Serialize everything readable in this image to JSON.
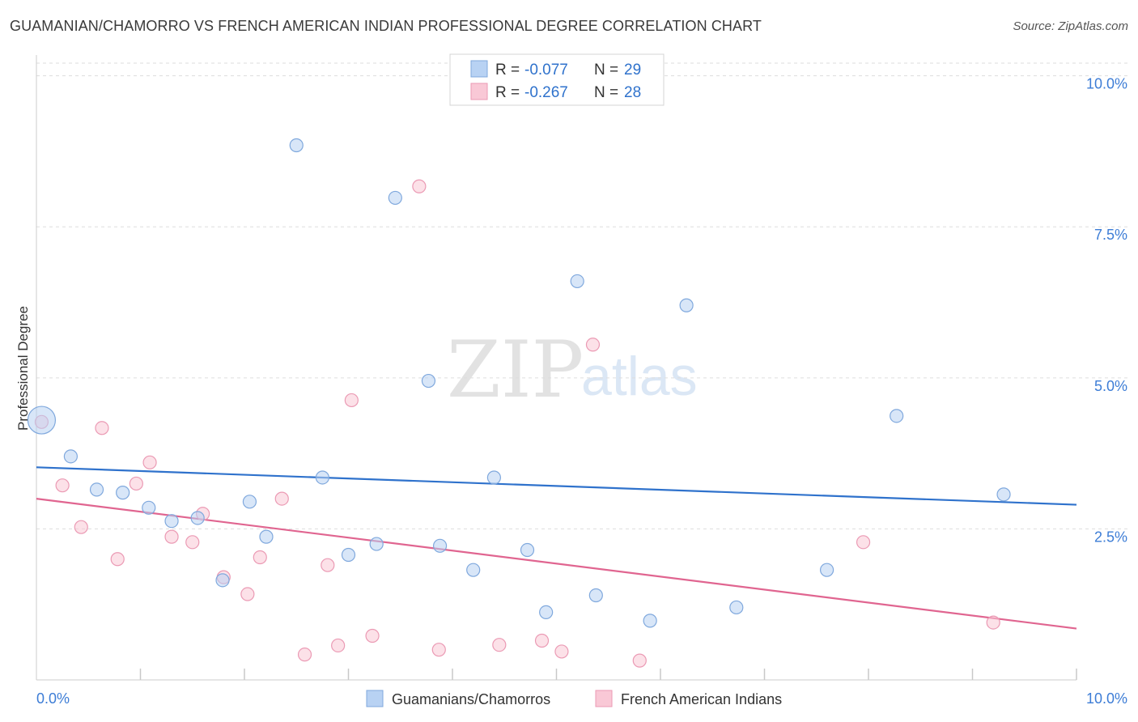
{
  "title": "GUAMANIAN/CHAMORRO VS FRENCH AMERICAN INDIAN PROFESSIONAL DEGREE CORRELATION CHART",
  "source": "Source: ZipAtlas.com",
  "watermark": {
    "zip": "ZIP",
    "atlas": "atlas"
  },
  "colors": {
    "blue_fill": "#b8d2f3",
    "blue_stroke": "#7fa8dd",
    "blue_line": "#2f72cc",
    "pink_fill": "#f9c8d6",
    "pink_stroke": "#eb9ab4",
    "pink_line": "#e06590",
    "tick_text": "#3d7dd6",
    "grid": "#dddddd"
  },
  "legend": {
    "rows": [
      {
        "r_label": "R =",
        "r_value": "-0.077",
        "n_label": "N =",
        "n_value": "29"
      },
      {
        "r_label": "R =",
        "r_value": "-0.267",
        "n_label": "N =",
        "n_value": "28"
      }
    ]
  },
  "chart_data": {
    "type": "scatter",
    "title": "GUAMANIAN/CHAMORRO VS FRENCH AMERICAN INDIAN PROFESSIONAL DEGREE CORRELATION CHART",
    "xlabel": "",
    "ylabel": "Professional Degree",
    "xlim": [
      0,
      10
    ],
    "ylim": [
      0,
      10.25
    ],
    "x_tick_labels": [
      "0.0%",
      "10.0%"
    ],
    "y_ticks": [
      2.5,
      5.0,
      7.5,
      10.0
    ],
    "y_tick_labels": [
      "2.5%",
      "5.0%",
      "7.5%",
      "10.0%"
    ],
    "grid": true,
    "series": [
      {
        "name": "Guamanians/Chamorros",
        "color": "blue",
        "R": -0.077,
        "N": 29,
        "trend": {
          "x": [
            0,
            10
          ],
          "y": [
            3.52,
            2.9
          ]
        },
        "points": [
          {
            "x": 0.05,
            "y": 4.3,
            "big": true
          },
          {
            "x": 0.33,
            "y": 3.7
          },
          {
            "x": 0.58,
            "y": 3.15
          },
          {
            "x": 0.83,
            "y": 3.1
          },
          {
            "x": 1.08,
            "y": 2.85
          },
          {
            "x": 1.3,
            "y": 2.63
          },
          {
            "x": 1.55,
            "y": 2.68
          },
          {
            "x": 1.79,
            "y": 1.65
          },
          {
            "x": 2.05,
            "y": 2.95
          },
          {
            "x": 2.21,
            "y": 2.37
          },
          {
            "x": 2.5,
            "y": 8.85
          },
          {
            "x": 2.75,
            "y": 3.35
          },
          {
            "x": 3.0,
            "y": 2.07
          },
          {
            "x": 3.27,
            "y": 2.25
          },
          {
            "x": 3.45,
            "y": 7.98
          },
          {
            "x": 3.77,
            "y": 4.95
          },
          {
            "x": 3.88,
            "y": 2.22
          },
          {
            "x": 4.2,
            "y": 1.82
          },
          {
            "x": 4.4,
            "y": 3.35
          },
          {
            "x": 4.72,
            "y": 2.15
          },
          {
            "x": 4.9,
            "y": 1.12
          },
          {
            "x": 5.2,
            "y": 6.6
          },
          {
            "x": 5.38,
            "y": 1.4
          },
          {
            "x": 5.9,
            "y": 0.98
          },
          {
            "x": 6.25,
            "y": 6.2
          },
          {
            "x": 6.73,
            "y": 1.2
          },
          {
            "x": 7.6,
            "y": 1.82
          },
          {
            "x": 8.27,
            "y": 4.37
          },
          {
            "x": 9.3,
            "y": 3.07
          }
        ]
      },
      {
        "name": "French American Indians",
        "color": "pink",
        "R": -0.267,
        "N": 28,
        "trend": {
          "x": [
            0,
            10
          ],
          "y": [
            3.0,
            0.85
          ]
        },
        "points": [
          {
            "x": 0.05,
            "y": 4.27
          },
          {
            "x": 0.25,
            "y": 3.22
          },
          {
            "x": 0.43,
            "y": 2.53
          },
          {
            "x": 0.63,
            "y": 4.17
          },
          {
            "x": 0.78,
            "y": 2.0
          },
          {
            "x": 0.96,
            "y": 3.25
          },
          {
            "x": 1.09,
            "y": 3.6
          },
          {
            "x": 1.3,
            "y": 2.37
          },
          {
            "x": 1.5,
            "y": 2.28
          },
          {
            "x": 1.6,
            "y": 2.75
          },
          {
            "x": 1.8,
            "y": 1.7
          },
          {
            "x": 2.03,
            "y": 1.42
          },
          {
            "x": 2.15,
            "y": 2.03
          },
          {
            "x": 2.36,
            "y": 3.0
          },
          {
            "x": 2.58,
            "y": 0.42
          },
          {
            "x": 2.8,
            "y": 1.9
          },
          {
            "x": 2.9,
            "y": 0.57
          },
          {
            "x": 3.03,
            "y": 4.63
          },
          {
            "x": 3.23,
            "y": 0.73
          },
          {
            "x": 3.68,
            "y": 8.17
          },
          {
            "x": 3.87,
            "y": 0.5
          },
          {
            "x": 4.45,
            "y": 0.58
          },
          {
            "x": 4.86,
            "y": 0.65
          },
          {
            "x": 5.05,
            "y": 0.47
          },
          {
            "x": 5.35,
            "y": 5.55
          },
          {
            "x": 5.8,
            "y": 0.32
          },
          {
            "x": 7.95,
            "y": 2.28
          },
          {
            "x": 9.2,
            "y": 0.95
          }
        ]
      }
    ]
  }
}
